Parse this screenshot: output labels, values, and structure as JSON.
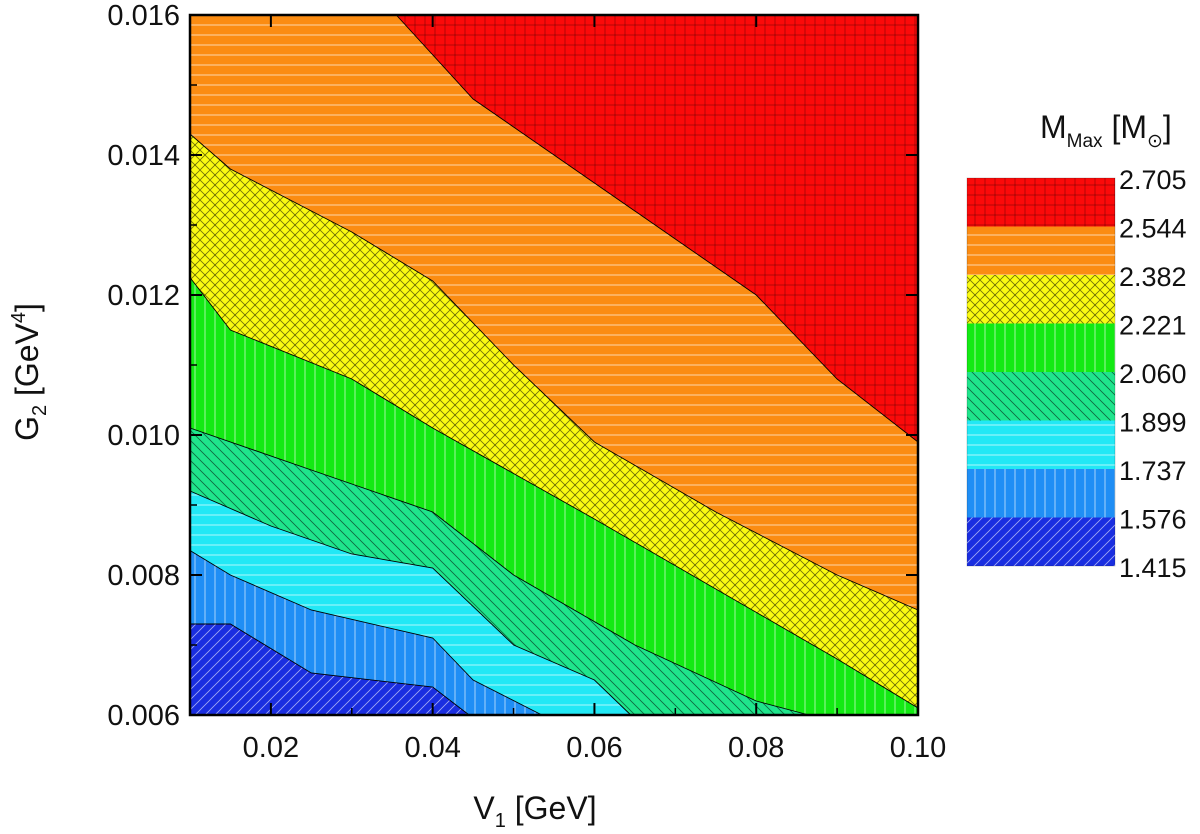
{
  "chart_data": {
    "type": "contour",
    "x_axis": {
      "label_main": "V",
      "label_sub": "1",
      "label_unit": " [GeV]",
      "range": [
        0.01,
        0.1
      ],
      "ticks": [
        0.02,
        0.04,
        0.06,
        0.08,
        0.1
      ],
      "tick_labels": [
        "0.02",
        "0.04",
        "0.06",
        "0.08",
        "0.10"
      ]
    },
    "y_axis": {
      "label_main": "G",
      "label_sub": "2",
      "label_unit_pre": " [GeV",
      "label_sup": "4",
      "label_unit_post": "]",
      "range": [
        0.006,
        0.016
      ],
      "ticks": [
        0.006,
        0.008,
        0.01,
        0.012,
        0.014,
        0.016
      ],
      "tick_labels": [
        "0.006",
        "0.008",
        "0.010",
        "0.012",
        "0.014",
        "0.016"
      ]
    },
    "legend": {
      "title_main": "M",
      "title_sub": "Max",
      "title_unit_pre": " [M",
      "title_sub2": "⊙",
      "title_unit_post": "]",
      "placement": "right",
      "levels": [
        "2.705",
        "2.544",
        "2.382",
        "2.221",
        "2.060",
        "1.899",
        "1.737",
        "1.576",
        "1.415"
      ]
    },
    "bands": [
      {
        "range": [
          1.415,
          1.576
        ],
        "color": "#1a2ee0",
        "pattern": "diag-up"
      },
      {
        "range": [
          1.576,
          1.737
        ],
        "color": "#1f8ef5",
        "pattern": "vertical"
      },
      {
        "range": [
          1.737,
          1.899
        ],
        "color": "#22e8f5",
        "pattern": "horizontal"
      },
      {
        "range": [
          1.899,
          2.06
        ],
        "color": "#1fe58c",
        "pattern": "diag-down"
      },
      {
        "range": [
          2.06,
          2.221
        ],
        "color": "#13ea13",
        "pattern": "vertical"
      },
      {
        "range": [
          2.221,
          2.382
        ],
        "color": "#fafa12",
        "pattern": "crosshatch"
      },
      {
        "range": [
          2.382,
          2.544
        ],
        "color": "#fb8c12",
        "pattern": "horizontal"
      },
      {
        "range": [
          2.544,
          2.705
        ],
        "color": "#fb0a0a",
        "pattern": "grid"
      }
    ],
    "contours": [
      {
        "level": 1.576,
        "points": [
          [
            0.01,
            0.0073
          ],
          [
            0.015,
            0.0073
          ],
          [
            0.025,
            0.0066
          ],
          [
            0.04,
            0.0064
          ],
          [
            0.0445,
            0.006
          ]
        ]
      },
      {
        "level": 1.737,
        "points": [
          [
            0.01,
            0.00835
          ],
          [
            0.015,
            0.008
          ],
          [
            0.025,
            0.0075
          ],
          [
            0.04,
            0.0071
          ],
          [
            0.045,
            0.0065
          ],
          [
            0.0535,
            0.006
          ]
        ]
      },
      {
        "level": 1.899,
        "points": [
          [
            0.01,
            0.0092
          ],
          [
            0.02,
            0.0087
          ],
          [
            0.03,
            0.0083
          ],
          [
            0.04,
            0.0081
          ],
          [
            0.05,
            0.007
          ],
          [
            0.06,
            0.0065
          ],
          [
            0.0645,
            0.006
          ]
        ]
      },
      {
        "level": 2.06,
        "points": [
          [
            0.01,
            0.0101
          ],
          [
            0.025,
            0.0095
          ],
          [
            0.04,
            0.0089
          ],
          [
            0.05,
            0.008
          ],
          [
            0.065,
            0.007
          ],
          [
            0.08,
            0.0062
          ],
          [
            0.0865,
            0.006
          ]
        ]
      },
      {
        "level": 2.221,
        "points": [
          [
            0.01,
            0.01225
          ],
          [
            0.015,
            0.0115
          ],
          [
            0.03,
            0.0108
          ],
          [
            0.04,
            0.0101
          ],
          [
            0.06,
            0.0088
          ],
          [
            0.075,
            0.0078
          ],
          [
            0.09,
            0.0068
          ],
          [
            0.1,
            0.0061
          ]
        ]
      },
      {
        "level": 2.382,
        "points": [
          [
            0.01,
            0.0143
          ],
          [
            0.015,
            0.0138
          ],
          [
            0.03,
            0.0129
          ],
          [
            0.04,
            0.0122
          ],
          [
            0.05,
            0.011
          ],
          [
            0.06,
            0.0099
          ],
          [
            0.075,
            0.0089
          ],
          [
            0.09,
            0.008
          ],
          [
            0.1,
            0.0075
          ]
        ]
      },
      {
        "level": 2.544,
        "points": [
          [
            0.0355,
            0.016
          ],
          [
            0.045,
            0.0148
          ],
          [
            0.055,
            0.014
          ],
          [
            0.07,
            0.0128
          ],
          [
            0.08,
            0.012
          ],
          [
            0.09,
            0.0108
          ],
          [
            0.1,
            0.0099
          ]
        ]
      }
    ]
  }
}
